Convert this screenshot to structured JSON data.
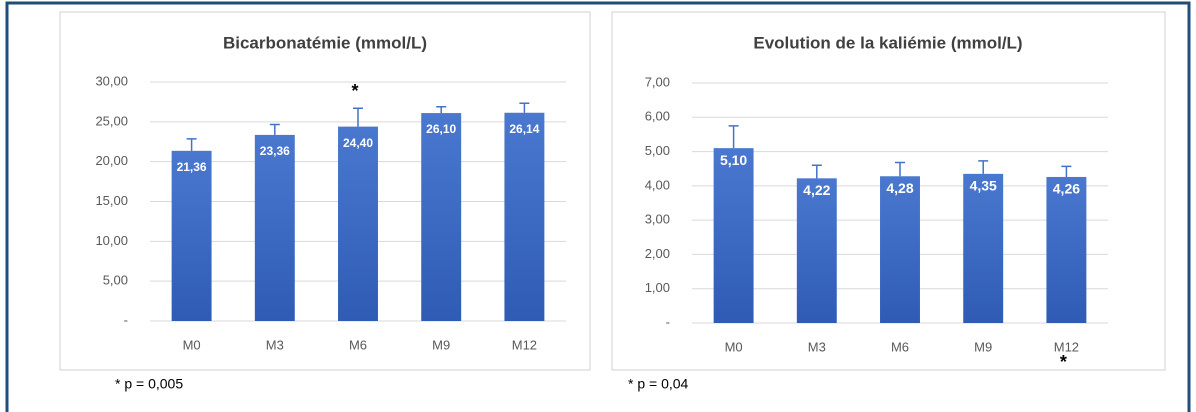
{
  "chart_data": [
    {
      "type": "bar",
      "title": "Bicarbonatémie (mmol/L)",
      "categories": [
        "M0",
        "M3",
        "M6",
        "M9",
        "M12"
      ],
      "values": [
        21.36,
        23.36,
        24.4,
        26.1,
        26.14
      ],
      "value_labels": [
        "21,36",
        "23,36",
        "24,40",
        "26,10",
        "26,14"
      ],
      "errors": [
        1.5,
        1.3,
        2.3,
        0.8,
        1.2
      ],
      "color": "#4472c4",
      "ylim": [
        0,
        30
      ],
      "yticks": [
        {
          "value": 0,
          "label": "-"
        },
        {
          "value": 5,
          "label": "5,00"
        },
        {
          "value": 10,
          "label": "10,00"
        },
        {
          "value": 15,
          "label": "15,00"
        },
        {
          "value": 20,
          "label": "20,00"
        },
        {
          "value": 25,
          "label": "25,00"
        },
        {
          "value": 30,
          "label": "30,00"
        }
      ],
      "grid": true,
      "annotation": "*",
      "footnote": "* p = 0,005"
    },
    {
      "type": "bar",
      "title": "Evolution de la kaliémie (mmol/L)",
      "categories": [
        "M0",
        "M3",
        "M6",
        "M9",
        "M12"
      ],
      "values": [
        5.1,
        4.22,
        4.28,
        4.35,
        4.26
      ],
      "value_labels": [
        "5,10",
        "4,22",
        "4,28",
        "4,35",
        "4,26"
      ],
      "errors": [
        0.65,
        0.38,
        0.4,
        0.38,
        0.31
      ],
      "color": "#4472c4",
      "ylim": [
        0,
        7
      ],
      "yticks": [
        {
          "value": 0,
          "label": "-"
        },
        {
          "value": 1,
          "label": "1,00"
        },
        {
          "value": 2,
          "label": "2,00"
        },
        {
          "value": 3,
          "label": "3,00"
        },
        {
          "value": 4,
          "label": "4,00"
        },
        {
          "value": 5,
          "label": "5,00"
        },
        {
          "value": 6,
          "label": "6,00"
        },
        {
          "value": 7,
          "label": "7,00"
        }
      ],
      "grid": true,
      "annotation": "*",
      "footnote": "* p = 0,04"
    }
  ]
}
